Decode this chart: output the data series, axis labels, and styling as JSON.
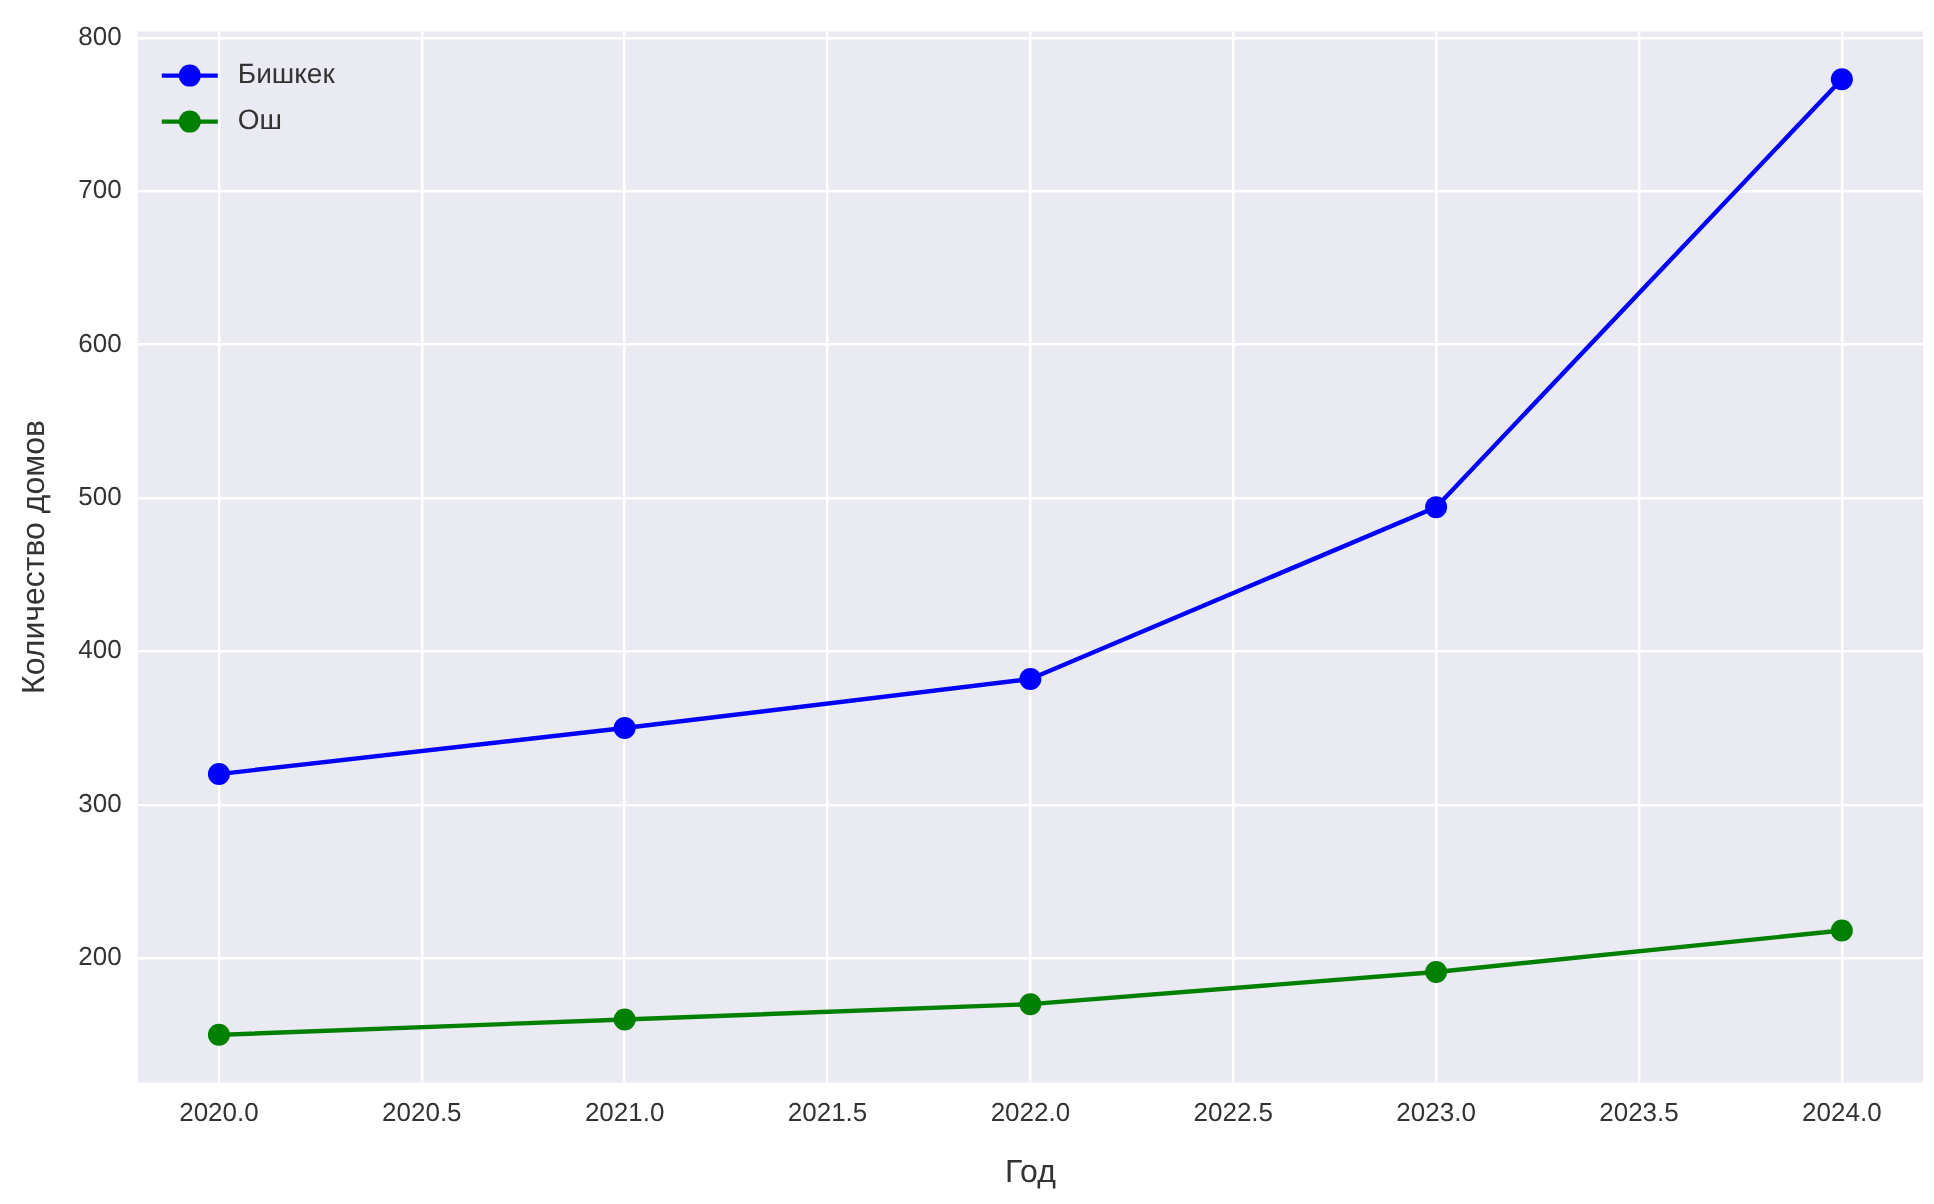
{
  "chart_data": {
    "type": "line",
    "xlabel": "Год",
    "ylabel": "Количество домов",
    "x": [
      2020,
      2021,
      2022,
      2023,
      2024
    ],
    "series": [
      {
        "name": "Бишкек",
        "color": "#0000ff",
        "values": [
          320,
          350,
          382,
          494,
          773
        ]
      },
      {
        "name": "Ош",
        "color": "#008000",
        "values": [
          150,
          160,
          170,
          191,
          218
        ]
      }
    ],
    "xlim": [
      2019.8,
      2024.2
    ],
    "xticks": [
      {
        "value": 2020,
        "label": "2020.0"
      },
      {
        "value": 2020.5,
        "label": "2020.5"
      },
      {
        "value": 2021,
        "label": "2021.0"
      },
      {
        "value": 2021.5,
        "label": "2021.5"
      },
      {
        "value": 2022,
        "label": "2022.0"
      },
      {
        "value": 2022.5,
        "label": "2022.5"
      },
      {
        "value": 2023,
        "label": "2023.0"
      },
      {
        "value": 2023.5,
        "label": "2023.5"
      },
      {
        "value": 2024,
        "label": "2024.0"
      }
    ],
    "ylim": [
      119,
      804
    ],
    "yticks": [
      200,
      300,
      400,
      500,
      600,
      700,
      800
    ],
    "grid": true,
    "legend": "top left",
    "marker": "circle",
    "line_style": "solid"
  }
}
